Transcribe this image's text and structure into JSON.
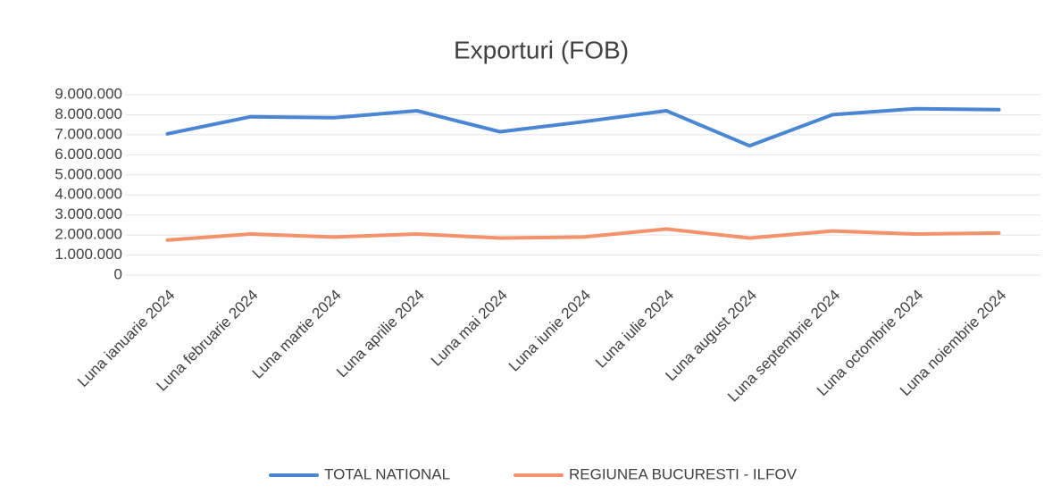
{
  "chart_data": {
    "type": "line",
    "title": "Exporturi (FOB)",
    "categories": [
      "Luna ianuarie 2024",
      "Luna februarie 2024",
      "Luna martie 2024",
      "Luna aprilie 2024",
      "Luna mai 2024",
      "Luna iunie 2024",
      "Luna iulie 2024",
      "Luna august 2024",
      "Luna septembrie 2024",
      "Luna octombrie 2024",
      "Luna noiembrie 2024"
    ],
    "series": [
      {
        "name": "TOTAL NATIONAL",
        "color": "#4a86d4",
        "values": [
          7050000,
          7900000,
          7850000,
          8200000,
          7150000,
          7650000,
          8200000,
          6450000,
          8000000,
          8300000,
          8250000
        ]
      },
      {
        "name": "REGIUNEA BUCURESTI - ILFOV",
        "color": "#f4926c",
        "values": [
          1750000,
          2050000,
          1900000,
          2050000,
          1850000,
          1900000,
          2300000,
          1850000,
          2200000,
          2050000,
          2100000
        ]
      }
    ],
    "ylim": [
      0,
      9000000
    ],
    "yticks": [
      0,
      {
        "value": 1000000,
        "label": "1.000.000"
      },
      {
        "value": 2000000,
        "label": "2.000.000"
      },
      {
        "value": 3000000,
        "label": "3.000.000"
      },
      {
        "value": 4000000,
        "label": "4.000.000"
      },
      {
        "value": 5000000,
        "label": "5.000.000"
      },
      {
        "value": 6000000,
        "label": "6.000.000"
      },
      {
        "value": 7000000,
        "label": "7.000.000"
      },
      {
        "value": 8000000,
        "label": "8.000.000"
      },
      {
        "value": 9000000,
        "label": "9.000.000"
      }
    ],
    "grid": true,
    "legend": "bottom"
  }
}
